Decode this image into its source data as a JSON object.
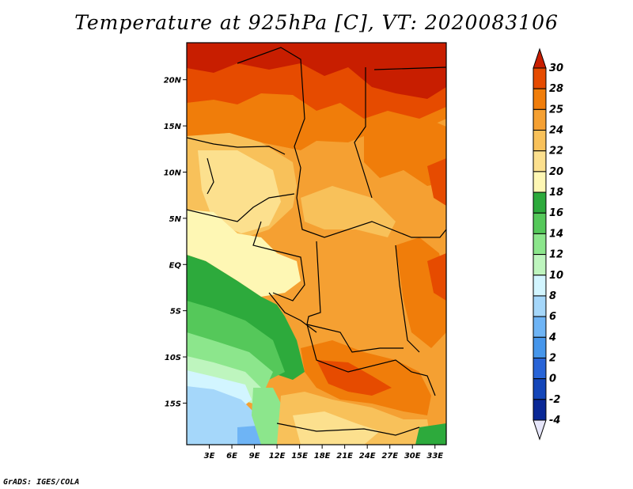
{
  "title": "Temperature at 925hPa [C], VT: 2020083106",
  "credit": "GrADS: IGES/COLA",
  "map": {
    "lon_range": [
      0,
      34.5
    ],
    "lat_range": [
      -19.5,
      24
    ],
    "lon_ticks": [
      "3E",
      "6E",
      "9E",
      "12E",
      "15E",
      "18E",
      "21E",
      "24E",
      "27E",
      "30E",
      "33E"
    ],
    "lon_values": [
      3,
      6,
      9,
      12,
      15,
      18,
      21,
      24,
      27,
      30,
      33
    ],
    "lat_ticks": [
      "20N",
      "15N",
      "10N",
      "5N",
      "EQ",
      "5S",
      "10S",
      "15S"
    ],
    "lat_values": [
      20,
      15,
      10,
      5,
      0,
      -5,
      -10,
      -15
    ]
  },
  "colorbar": {
    "labels": [
      "30",
      "28",
      "25",
      "24",
      "22",
      "20",
      "18",
      "16",
      "14",
      "12",
      "10",
      "8",
      "6",
      "4",
      "2",
      "0",
      "-2",
      "-4"
    ],
    "colors": [
      "#c81e00",
      "#e64b00",
      "#f07d0a",
      "#f5a032",
      "#f8c15a",
      "#fce08e",
      "#fef7b4",
      "#2daa3c",
      "#55c85a",
      "#8ce68c",
      "#bef5be",
      "#d2f5ff",
      "#a5d7fa",
      "#6eb4f5",
      "#4696eb",
      "#2864d7",
      "#1446b9",
      "#0a2896",
      "#08085a"
    ],
    "top_arrow_color": "#c81e00",
    "bottom_arrow_color": "#e6e6fa"
  }
}
